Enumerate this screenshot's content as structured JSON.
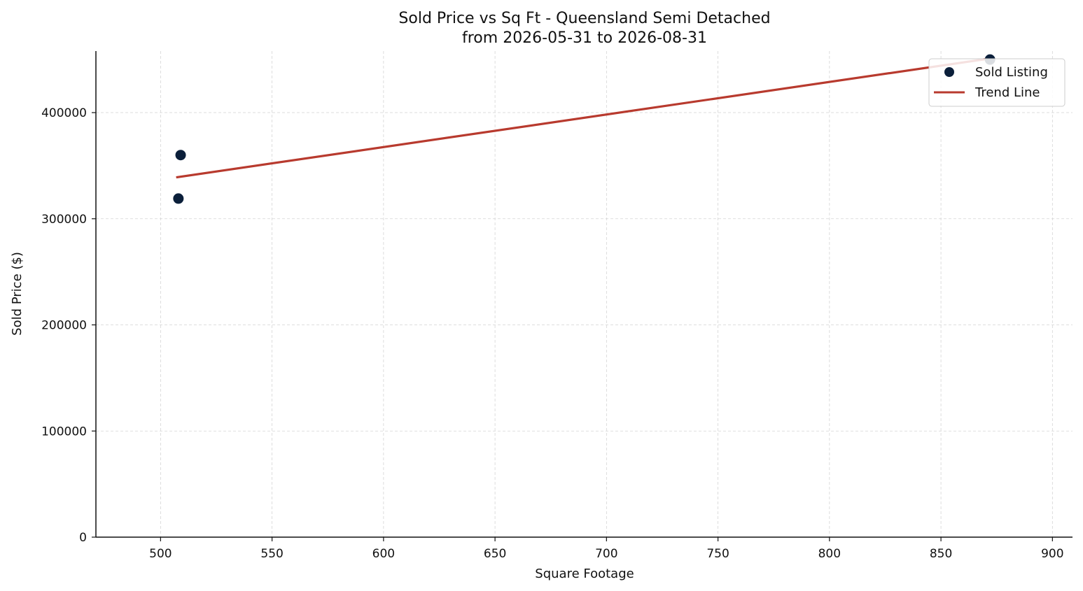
{
  "chart_data": {
    "type": "scatter",
    "title": "Sold Price vs Sq Ft - Queensland Semi Detached",
    "subtitle": "from 2026-05-31 to 2026-08-31",
    "xlabel": "Square Footage",
    "ylabel": "Sold Price ($)",
    "xlim": [
      471,
      909
    ],
    "ylim": [
      0,
      458000
    ],
    "x_ticks": [
      500,
      550,
      600,
      650,
      700,
      750,
      800,
      850,
      900
    ],
    "y_ticks": [
      0,
      100000,
      200000,
      300000,
      400000
    ],
    "grid": true,
    "legend_position": "top-right",
    "series": [
      {
        "name": "Sold Listing",
        "kind": "scatter",
        "color": "#0b1f3a",
        "points": [
          {
            "x": 508,
            "y": 319000
          },
          {
            "x": 509,
            "y": 360000
          },
          {
            "x": 872,
            "y": 450000
          }
        ]
      },
      {
        "name": "Trend Line",
        "kind": "line",
        "color": "#b83a2e",
        "points": [
          {
            "x": 507,
            "y": 339000
          },
          {
            "x": 872,
            "y": 451000
          }
        ]
      }
    ]
  }
}
